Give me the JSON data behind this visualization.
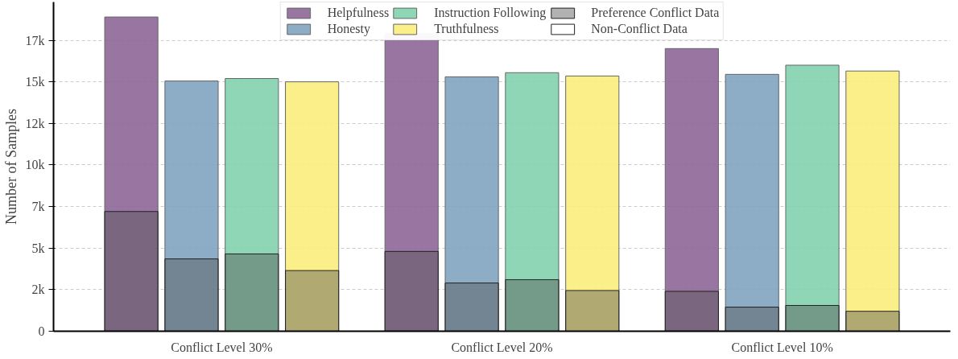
{
  "chart_data": {
    "type": "bar",
    "ylabel": "Number of Samples",
    "categories": [
      "Conflict Level 30%",
      "Conflict Level 20%",
      "Conflict Level 10%"
    ],
    "series": [
      {
        "name": "Helpfulness",
        "color": "#8e6698",
        "values": [
          18900,
          17900,
          17000
        ]
      },
      {
        "name": "Honesty",
        "color": "#7fa4bf",
        "values": [
          15050,
          15300,
          15450
        ]
      },
      {
        "name": "Instruction Following",
        "color": "#82d2ad",
        "values": [
          15200,
          15550,
          16000
        ]
      },
      {
        "name": "Truthfulness",
        "color": "#fbed7d",
        "values": [
          15000,
          15350,
          15650
        ]
      },
      {
        "name": "Preference Conflict Data",
        "color": "#555555",
        "values": [
          7200,
          4800,
          2400
        ]
      },
      {
        "color": "#555555",
        "values": [
          4350,
          2900,
          1450
        ]
      },
      {
        "color": "#555555",
        "values": [
          4650,
          3100,
          1550
        ]
      },
      {
        "color": "#555555",
        "values": [
          3650,
          2450,
          1200
        ]
      },
      {
        "name": "Non-Conflict Data",
        "color": "#ffffff",
        "values": [
          null,
          null,
          null
        ]
      }
    ],
    "ylim": [
      0,
      19800
    ],
    "yticks": [
      0,
      {
        "value": 2500,
        "label": "2k"
      },
      {
        "value": 5000,
        "label": "5k"
      },
      {
        "value": 7500,
        "label": "7k"
      },
      {
        "value": 10000,
        "label": "10k"
      },
      {
        "value": 12500,
        "label": "12k"
      },
      {
        "value": 15000,
        "label": "15k"
      },
      {
        "value": 17500,
        "label": "17k"
      }
    ],
    "grid": "y",
    "legend": "top"
  }
}
